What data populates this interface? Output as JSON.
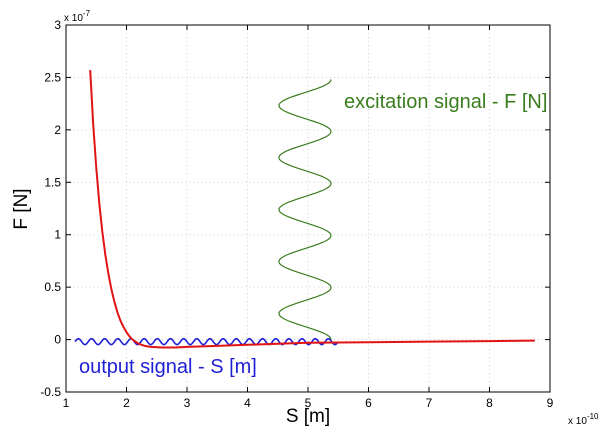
{
  "chart_data": {
    "type": "line",
    "xlabel": "S [m]",
    "ylabel": "F [N]",
    "x_multiplier": "x 10",
    "x_exponent": "-10",
    "y_multiplier": "x 10",
    "y_exponent": "-7",
    "xlim": [
      1,
      9
    ],
    "ylim": [
      -0.5,
      3
    ],
    "x_ticks": [
      "1",
      "2",
      "3",
      "4",
      "5",
      "6",
      "7",
      "8",
      "9"
    ],
    "y_ticks": [
      "-0.5",
      "0",
      "0.5",
      "1",
      "1.5",
      "2",
      "2.5",
      "3"
    ],
    "grid": true,
    "annotations": [
      {
        "text": "excitation signal - F [N]",
        "color": "#3a7d1e"
      },
      {
        "text": "output signal - S [m]",
        "color": "#1f1fd6"
      }
    ],
    "series": [
      {
        "color": "#e01414",
        "x": [
          1.4,
          1.45,
          1.5,
          1.55,
          1.6,
          1.65,
          1.7,
          1.75,
          1.8,
          1.85,
          1.9,
          1.95,
          2.0,
          2.05,
          2.1,
          2.2,
          2.3,
          2.4,
          2.6,
          2.8,
          3.0,
          3.5,
          4.0,
          4.5,
          5.0,
          6.0,
          7.0,
          8.0,
          8.75
        ],
        "y": [
          2.57,
          2.05,
          1.64,
          1.3,
          1.03,
          0.81,
          0.63,
          0.48,
          0.36,
          0.26,
          0.18,
          0.12,
          0.07,
          0.03,
          0.0,
          -0.04,
          -0.06,
          -0.07,
          -0.075,
          -0.075,
          -0.07,
          -0.06,
          -0.05,
          -0.04,
          -0.03,
          -0.025,
          -0.02,
          -0.015,
          -0.01
        ]
      },
      {
        "color": "#3a7d1e",
        "x_center": 4.95,
        "x_amplitude": 0.43,
        "y_start": 0.0,
        "y_end": 2.48,
        "cycles": 5
      },
      {
        "color": "#1f1fd6",
        "x_start": 1.15,
        "x_end": 5.5,
        "y_center": -0.02,
        "y_amplitude": 0.028,
        "cycles": 20
      }
    ]
  }
}
